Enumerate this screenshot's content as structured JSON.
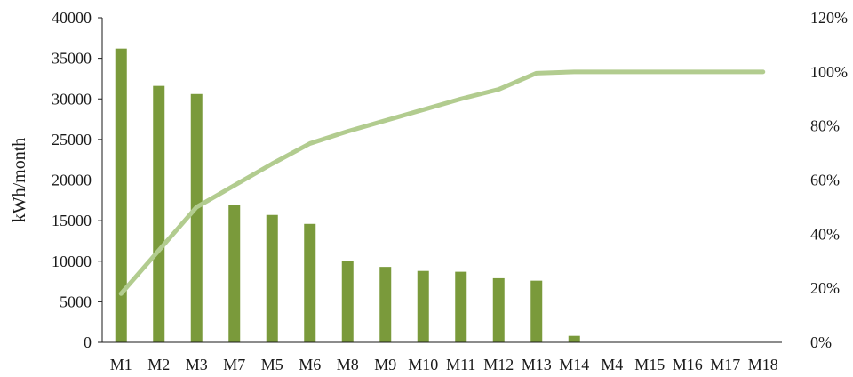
{
  "chart_data": {
    "type": "bar",
    "categories": [
      "M1",
      "M2",
      "M3",
      "M7",
      "M5",
      "M6",
      "M8",
      "M9",
      "M10",
      "M11",
      "M12",
      "M13",
      "M14",
      "M4",
      "M15",
      "M16",
      "M17",
      "M18"
    ],
    "series": [
      {
        "type": "bar",
        "axis": "left",
        "values": [
          36200,
          31600,
          30600,
          16900,
          15700,
          14600,
          10000,
          9300,
          8800,
          8700,
          7900,
          7600,
          800,
          0,
          0,
          0,
          0,
          0
        ],
        "color": "#7a9a3b"
      },
      {
        "type": "line",
        "axis": "right",
        "values": [
          0.18,
          0.34,
          0.5,
          0.58,
          0.66,
          0.735,
          0.78,
          0.82,
          0.86,
          0.9,
          0.935,
          0.995,
          1.0,
          1.0,
          1.0,
          1.0,
          1.0,
          1.0
        ],
        "color": "#b2cc8f"
      }
    ],
    "title": "",
    "xlabel": "",
    "ylabel": "kWh/month",
    "ylim": [
      0,
      40000
    ],
    "yticks": [
      "0",
      "5000",
      "10000",
      "15000",
      "20000",
      "25000",
      "30000",
      "35000",
      "40000"
    ],
    "y2lim": [
      0,
      1.2
    ],
    "y2ticks": [
      "0%",
      "20%",
      "40%",
      "60%",
      "80%",
      "100%",
      "120%"
    ],
    "grid": false,
    "legend": "none"
  }
}
